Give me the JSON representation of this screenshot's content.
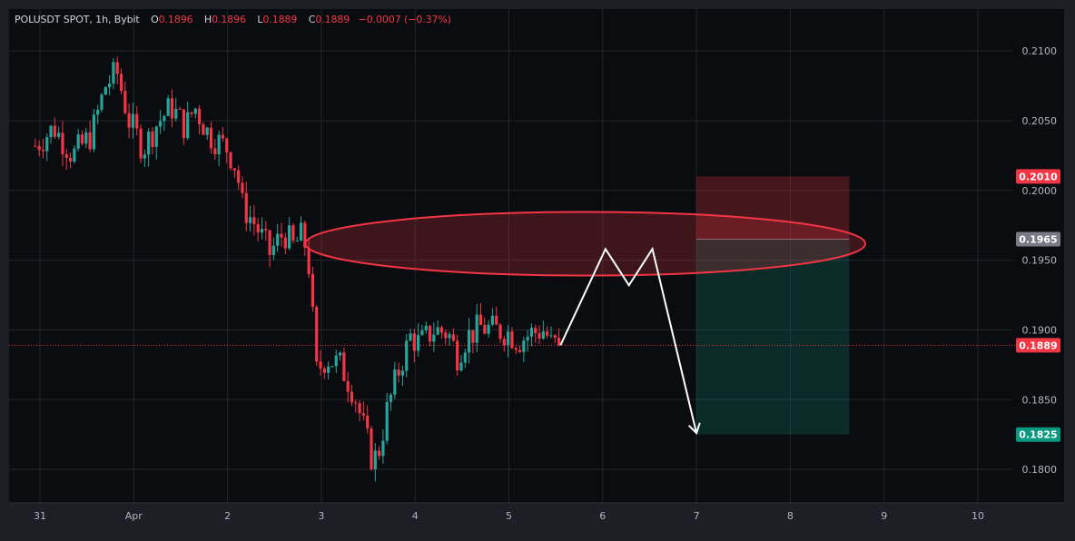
{
  "header": {
    "symbol": "POLUSDT SPOT, 1h, Bybit",
    "open_label": "O",
    "open": "0.1896",
    "high_label": "H",
    "high": "0.1896",
    "low_label": "L",
    "low": "0.1889",
    "close_label": "C",
    "close": "0.1889",
    "change": "−0.0007 (−0.37%)"
  },
  "colors": {
    "background": "#0b0c10",
    "frame": "#1e1f26",
    "grid": "#24262d",
    "up": "#26a69a",
    "down": "#f23645",
    "text": "#b2b5be",
    "drawing": "#ffffff"
  },
  "chart_data": {
    "type": "candlestick",
    "instrument": "POLUSDT SPOT",
    "interval": "1h",
    "exchange": "Bybit",
    "ylim": [
      0.1776,
      0.213
    ],
    "y_ticks": [
      0.21,
      0.205,
      0.2,
      0.195,
      0.19,
      0.185,
      0.18
    ],
    "y_tick_labels": [
      "0.2100",
      "0.2050",
      "0.2000",
      "0.1950",
      "0.1900",
      "0.1850",
      "0.1800"
    ],
    "x_ticks": [
      {
        "label": "31",
        "day": 0
      },
      {
        "label": "Apr",
        "day": 1
      },
      {
        "label": "2",
        "day": 2
      },
      {
        "label": "3",
        "day": 3
      },
      {
        "label": "4",
        "day": 4
      },
      {
        "label": "5",
        "day": 5
      },
      {
        "label": "6",
        "day": 6
      },
      {
        "label": "7",
        "day": 7
      },
      {
        "label": "8",
        "day": 8
      },
      {
        "label": "9",
        "day": 9
      },
      {
        "label": "10",
        "day": 10
      }
    ],
    "price_path": [
      [
        -0.05,
        0.2032
      ],
      [
        0.15,
        0.2045
      ],
      [
        0.35,
        0.2025
      ],
      [
        0.55,
        0.204
      ],
      [
        0.7,
        0.2075
      ],
      [
        0.82,
        0.2085
      ],
      [
        0.95,
        0.205
      ],
      [
        1.1,
        0.203
      ],
      [
        1.25,
        0.2048
      ],
      [
        1.4,
        0.206
      ],
      [
        1.55,
        0.2045
      ],
      [
        1.65,
        0.206
      ],
      [
        1.8,
        0.204
      ],
      [
        2.0,
        0.203
      ],
      [
        2.1,
        0.2015
      ],
      [
        2.15,
        0.199
      ],
      [
        2.3,
        0.1975
      ],
      [
        2.45,
        0.1955
      ],
      [
        2.6,
        0.197
      ],
      [
        2.7,
        0.196
      ],
      [
        2.8,
        0.1968
      ],
      [
        2.86,
        0.1952
      ],
      [
        2.9,
        0.1915
      ],
      [
        2.95,
        0.187
      ],
      [
        3.05,
        0.188
      ],
      [
        3.2,
        0.1875
      ],
      [
        3.35,
        0.1855
      ],
      [
        3.45,
        0.183
      ],
      [
        3.55,
        0.1805
      ],
      [
        3.62,
        0.1815
      ],
      [
        3.7,
        0.1842
      ],
      [
        3.82,
        0.187
      ],
      [
        3.95,
        0.1895
      ],
      [
        4.05,
        0.189
      ],
      [
        4.2,
        0.19
      ],
      [
        4.35,
        0.1898
      ],
      [
        4.45,
        0.1882
      ],
      [
        4.55,
        0.1895
      ],
      [
        4.7,
        0.1902
      ],
      [
        4.85,
        0.19
      ],
      [
        5.0,
        0.1898
      ],
      [
        5.1,
        0.1892
      ],
      [
        5.25,
        0.1898
      ],
      [
        5.38,
        0.19
      ],
      [
        5.45,
        0.189
      ],
      [
        5.52,
        0.1889
      ]
    ],
    "last_price": 0.1889,
    "price_labels": [
      {
        "value": 0.201,
        "text": "0.2010",
        "color": "#f23645"
      },
      {
        "value": 0.1965,
        "text": "0.1965",
        "color": "#787b86"
      },
      {
        "value": 0.1889,
        "text": "0.1889",
        "color": "#f23645"
      },
      {
        "value": 0.1825,
        "text": "0.1825",
        "color": "#089981"
      }
    ],
    "drawings": {
      "short_position": {
        "entry": 0.1965,
        "stop": 0.201,
        "target": 0.1825,
        "from_day": 7.0,
        "to_day": 8.63
      },
      "resistance_ellipse": {
        "from_day": 2.83,
        "to_day": 8.8,
        "center": 0.19618,
        "half_height": 0.00228
      },
      "projection_path": [
        [
          5.55,
          0.1889
        ],
        [
          6.03,
          0.1958
        ],
        [
          6.28,
          0.1932
        ],
        [
          6.53,
          0.1958
        ],
        [
          7.0,
          0.1826
        ]
      ]
    },
    "grid": true,
    "legend": "none"
  }
}
